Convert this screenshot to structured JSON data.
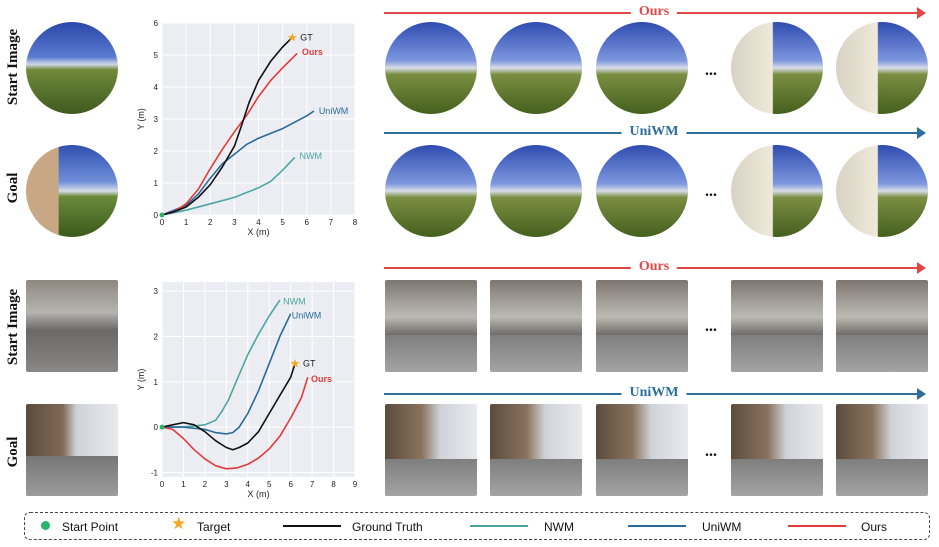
{
  "rows": [
    {
      "start_label": "Start Image",
      "goal_label": "Goal"
    },
    {
      "start_label": "Start Image",
      "goal_label": "Goal"
    }
  ],
  "banners": {
    "ours": "Ours",
    "uniwm": "UniWM"
  },
  "ellipsis": "...",
  "colors": {
    "gt": "#111111",
    "nwm": "#4aa6a1",
    "uniwm": "#2a6a9a",
    "ours": "#e23a3a",
    "start": "#2ab36a",
    "target": "#f5a623",
    "ours_banner": "#e04848",
    "uniwm_banner": "#2c6e9c"
  },
  "legend": {
    "start": "Start Point",
    "target": "Target",
    "gt": "Ground Truth",
    "nwm": "NWM",
    "uniwm": "UniWM",
    "ours": "Ours"
  },
  "chart_data": [
    {
      "type": "line",
      "xlabel": "X (m)",
      "ylabel": "Y (m)",
      "xlim": [
        0,
        8
      ],
      "ylim": [
        0,
        6
      ],
      "xticks": [
        0,
        1,
        2,
        3,
        4,
        5,
        6,
        7,
        8
      ],
      "yticks": [
        0,
        1,
        2,
        3,
        4,
        5,
        6
      ],
      "target": {
        "label": "GT",
        "x": 5.4,
        "y": 5.55
      },
      "series": [
        {
          "name": "GT",
          "key": "gt",
          "x": [
            0,
            0.5,
            1,
            1.5,
            2,
            2.5,
            3,
            3.3,
            3.6,
            4,
            4.5,
            5,
            5.4
          ],
          "y": [
            0,
            0.1,
            0.25,
            0.55,
            0.95,
            1.5,
            2.15,
            2.8,
            3.5,
            4.2,
            4.8,
            5.25,
            5.55
          ]
        },
        {
          "name": "Ours",
          "key": "ours",
          "x": [
            0,
            0.5,
            1,
            1.5,
            2,
            2.5,
            3,
            3.5,
            4,
            4.5,
            5,
            5.6
          ],
          "y": [
            0,
            0.1,
            0.35,
            0.8,
            1.45,
            2.05,
            2.6,
            3.1,
            3.7,
            4.2,
            4.6,
            5.05
          ]
        },
        {
          "name": "UniWM",
          "key": "uniwm",
          "x": [
            0,
            1,
            1.5,
            2,
            2.5,
            3,
            3.5,
            4,
            4.5,
            5,
            5.5,
            6,
            6.3
          ],
          "y": [
            0,
            0.3,
            0.65,
            1.15,
            1.6,
            1.9,
            2.2,
            2.4,
            2.55,
            2.7,
            2.9,
            3.1,
            3.25
          ]
        },
        {
          "name": "NWM",
          "key": "nwm",
          "x": [
            0,
            1,
            2,
            3,
            4,
            4.5,
            5,
            5.5
          ],
          "y": [
            0,
            0.15,
            0.35,
            0.55,
            0.85,
            1.05,
            1.4,
            1.8
          ]
        }
      ]
    },
    {
      "type": "line",
      "xlabel": "X (m)",
      "ylabel": "Y (m)",
      "xlim": [
        0,
        9
      ],
      "ylim": [
        -1.1,
        3.2
      ],
      "xticks": [
        0,
        1,
        2,
        3,
        4,
        5,
        6,
        7,
        8,
        9
      ],
      "yticks": [
        -1,
        0,
        1,
        2,
        3
      ],
      "target": {
        "label": "GT",
        "x": 6.2,
        "y": 1.4
      },
      "series": [
        {
          "name": "GT",
          "key": "gt",
          "x": [
            0,
            0.5,
            1,
            1.5,
            2,
            2.5,
            3,
            3.3,
            3.6,
            4,
            4.5,
            5,
            5.5,
            6,
            6.2
          ],
          "y": [
            0,
            0.05,
            0.1,
            0.05,
            -0.1,
            -0.3,
            -0.45,
            -0.5,
            -0.45,
            -0.35,
            -0.1,
            0.3,
            0.7,
            1.1,
            1.4
          ]
        },
        {
          "name": "Ours",
          "key": "ours",
          "x": [
            0,
            0.5,
            1,
            1.5,
            2,
            2.5,
            3,
            3.5,
            4,
            4.5,
            5,
            5.5,
            6,
            6.5,
            6.8
          ],
          "y": [
            0,
            -0.05,
            -0.25,
            -0.5,
            -0.7,
            -0.85,
            -0.92,
            -0.9,
            -0.82,
            -0.68,
            -0.48,
            -0.2,
            0.2,
            0.65,
            1.1
          ]
        },
        {
          "name": "UniWM",
          "key": "uniwm",
          "x": [
            0,
            1,
            2,
            2.5,
            3,
            3.3,
            3.6,
            4,
            4.5,
            5,
            5.5,
            6
          ],
          "y": [
            0,
            0,
            -0.05,
            -0.12,
            -0.15,
            -0.12,
            0,
            0.3,
            0.8,
            1.4,
            2,
            2.5
          ]
        },
        {
          "name": "NWM",
          "key": "nwm",
          "x": [
            0,
            1,
            2,
            2.5,
            2.8,
            3.1,
            3.5,
            4,
            4.5,
            5,
            5.5
          ],
          "y": [
            0,
            0,
            0.05,
            0.15,
            0.35,
            0.6,
            1.05,
            1.6,
            2.05,
            2.45,
            2.8
          ]
        }
      ]
    }
  ]
}
